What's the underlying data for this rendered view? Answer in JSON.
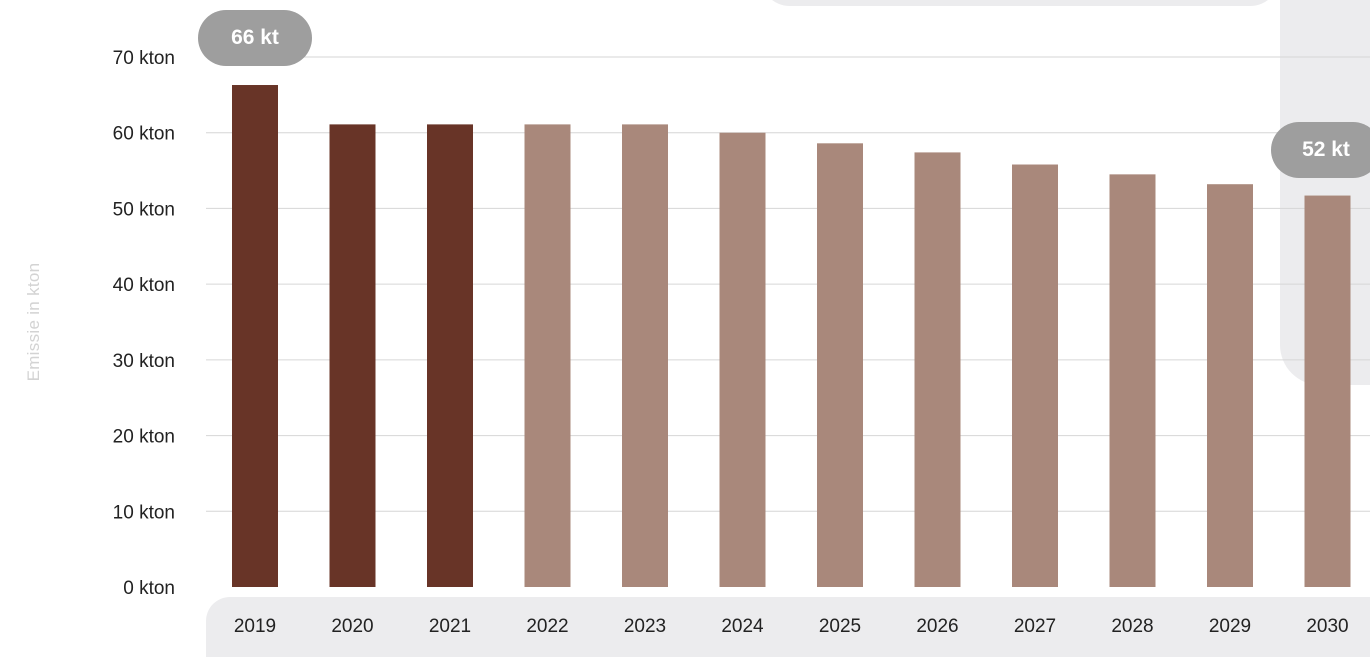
{
  "chart_data": {
    "type": "bar",
    "categories": [
      "2019",
      "2020",
      "2021",
      "2022",
      "2023",
      "2024",
      "2025",
      "2026",
      "2027",
      "2028",
      "2029",
      "2030"
    ],
    "values": [
      66.3,
      61.1,
      61.1,
      61.1,
      61.1,
      60.0,
      58.6,
      57.4,
      55.8,
      54.5,
      53.2,
      51.7
    ],
    "ylabel": "Emissie in kton",
    "xlabel": "",
    "ylim": [
      0,
      70
    ],
    "yticks": [
      0,
      10,
      20,
      30,
      40,
      50,
      60,
      70
    ],
    "ytick_labels": [
      "0 kton",
      "10 kton",
      "20 kton",
      "30 kton",
      "40 kton",
      "50 kton",
      "60 kton",
      "70 kton"
    ],
    "grid": true,
    "colors": {
      "historical": "#683427",
      "projected": "#a9887b",
      "gridline": "#d6d6d6",
      "callout": "#9e9e9e"
    },
    "historical_count": 3,
    "annotations": {
      "first": "66 kt",
      "last": "52 kt"
    }
  }
}
